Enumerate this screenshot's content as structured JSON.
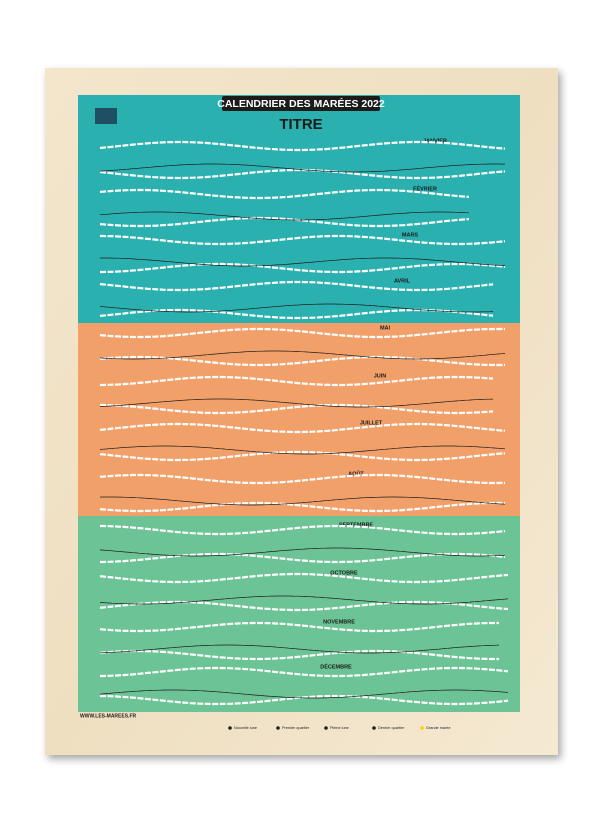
{
  "header": {
    "title": "CALENDRIER DES MARÉES 2022",
    "subtitle": "TITRE"
  },
  "months": [
    "JANVIER",
    "FÉVRIER",
    "MARS",
    "AVRIL",
    "MAI",
    "JUIN",
    "JUILLET",
    "AOÛT",
    "SEPTEMBRE",
    "OCTOBRE",
    "NOVEMBRE",
    "DÉCEMBRE"
  ],
  "footer": {
    "website": "WWW.LES-MAREES.FR",
    "legend": [
      "Nouvelle lune",
      "Premier quartier",
      "Pleine lune",
      "Dernier quartier",
      "Grande marée"
    ]
  }
}
